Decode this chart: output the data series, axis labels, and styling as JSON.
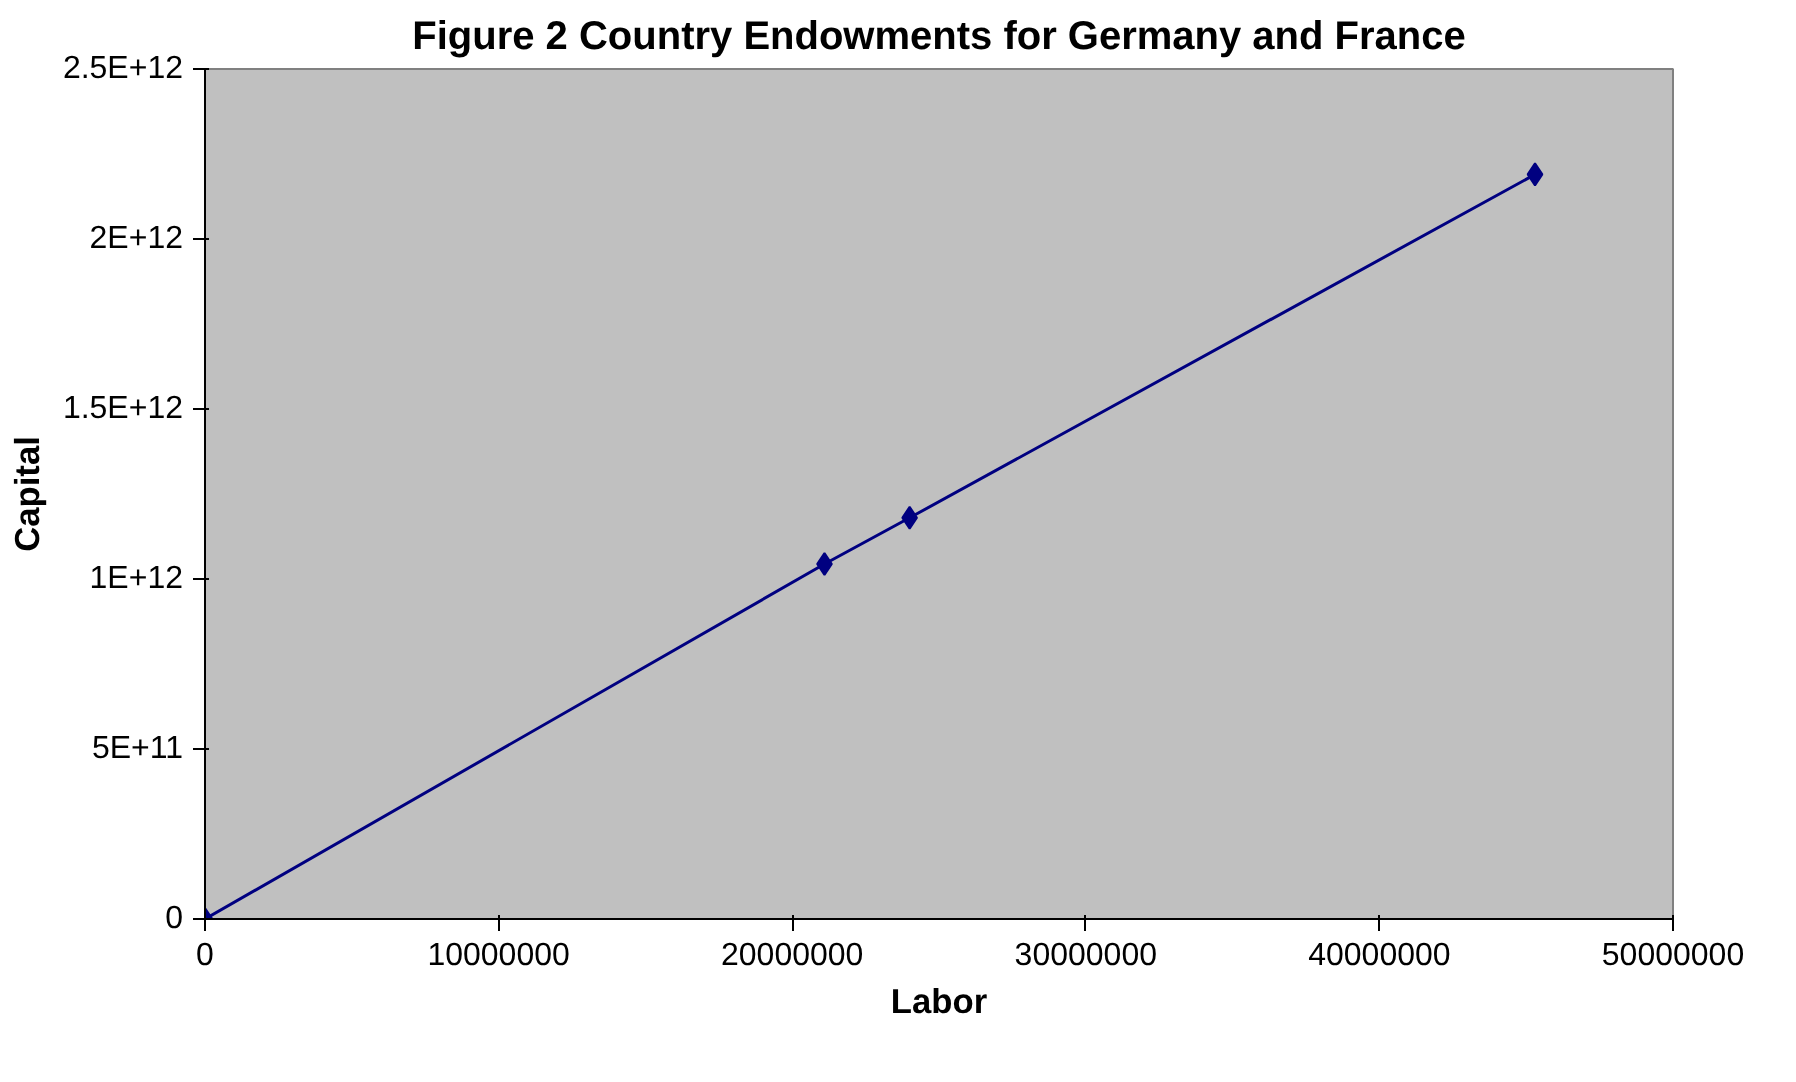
{
  "chart_data": {
    "type": "line",
    "title": "Figure 2 Country Endowments for Germany and France",
    "xlabel": "Labor",
    "ylabel": "Capital",
    "x": [
      0,
      21100000,
      24000000,
      45300000
    ],
    "series": [
      {
        "color": "#000080",
        "values": [
          0,
          1044000000000,
          1180000000000,
          2190000000000
        ]
      }
    ],
    "xlim": [
      0,
      50000000
    ],
    "xticks": [
      0,
      10000000,
      20000000,
      30000000,
      40000000,
      50000000
    ],
    "ylim": [
      0,
      2500000000000
    ],
    "yticks": [
      0,
      {
        "value": 500000000000,
        "label": "5E+11"
      },
      {
        "value": 1000000000000,
        "label": "1E+12"
      },
      {
        "value": 1500000000000,
        "label": "1.5E+12"
      },
      {
        "value": 2000000000000,
        "label": "2E+12"
      },
      {
        "value": 2500000000000,
        "label": "2.5E+12"
      }
    ],
    "grid": false,
    "marker": "diamond",
    "line_style": "solid"
  }
}
